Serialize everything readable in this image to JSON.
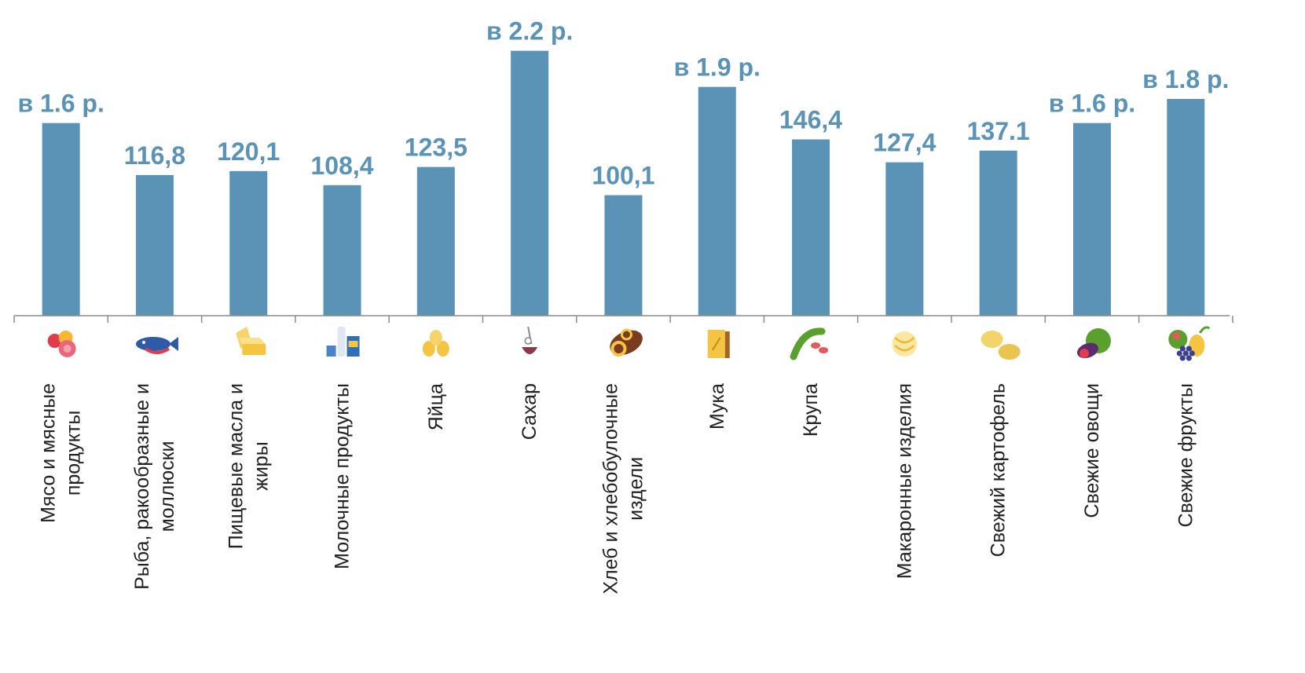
{
  "colors": {
    "bar": "#5b93b6",
    "label": "#5b93b6",
    "text": "#222222",
    "axis": "#8c8c8c"
  },
  "chart_data": {
    "type": "bar",
    "title": "",
    "xlabel": "",
    "ylabel": "",
    "ylim": [
      0,
      225
    ],
    "grid": false,
    "legend": "none",
    "categories": [
      [
        "Мясо и мясные",
        "продукты"
      ],
      [
        "Рыба, ракообразные и",
        "моллюски"
      ],
      [
        "Пищевые масла и",
        "жиры"
      ],
      [
        "Молочные продукты"
      ],
      [
        "Яйца"
      ],
      [
        "Сахар"
      ],
      [
        "Хлеб и хлебобулочные",
        "издели"
      ],
      [
        "Мука"
      ],
      [
        "Крупа"
      ],
      [
        "Макаронные изделия"
      ],
      [
        "Свежий картофель"
      ],
      [
        "Свежие овощи"
      ],
      [
        "Свежие фрукты"
      ]
    ],
    "values": [
      160,
      116.8,
      120.1,
      108.4,
      123.5,
      220,
      100.1,
      190,
      146.4,
      127.4,
      137.1,
      160,
      180
    ],
    "data_labels": [
      "в 1.6 р.",
      "116,8",
      "120,1",
      "108,4",
      "123,5",
      "в 2.2 р.",
      "100,1",
      "в 1.9 р.",
      "146,4",
      "127,4",
      "137.1",
      "в 1.6 р.",
      "в 1.8 р."
    ],
    "icons": [
      "meat-icon",
      "fish-icon",
      "butter-icon",
      "dairy-icon",
      "eggs-icon",
      "sugar-icon",
      "bread-icon",
      "flour-icon",
      "beans-icon",
      "pasta-icon",
      "potato-icon",
      "vegetables-icon",
      "fruits-icon"
    ]
  }
}
